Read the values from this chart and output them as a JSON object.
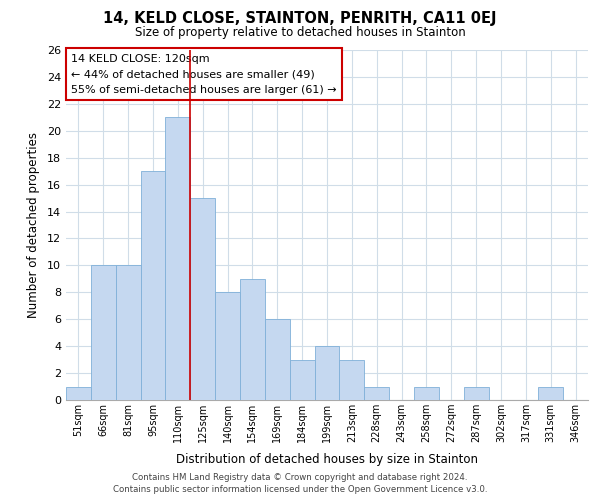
{
  "title": "14, KELD CLOSE, STAINTON, PENRITH, CA11 0EJ",
  "subtitle": "Size of property relative to detached houses in Stainton",
  "xlabel": "Distribution of detached houses by size in Stainton",
  "ylabel": "Number of detached properties",
  "bin_labels": [
    "51sqm",
    "66sqm",
    "81sqm",
    "95sqm",
    "110sqm",
    "125sqm",
    "140sqm",
    "154sqm",
    "169sqm",
    "184sqm",
    "199sqm",
    "213sqm",
    "228sqm",
    "243sqm",
    "258sqm",
    "272sqm",
    "287sqm",
    "302sqm",
    "317sqm",
    "331sqm",
    "346sqm"
  ],
  "bar_values": [
    1,
    10,
    10,
    17,
    21,
    15,
    8,
    9,
    6,
    3,
    4,
    3,
    1,
    0,
    1,
    0,
    1,
    0,
    0,
    1,
    0
  ],
  "bar_color": "#c5d8f0",
  "bar_edgecolor": "#7fb0d8",
  "vline_color": "#cc0000",
  "vline_x": 4.5,
  "ylim": [
    0,
    26
  ],
  "yticks": [
    0,
    2,
    4,
    6,
    8,
    10,
    12,
    14,
    16,
    18,
    20,
    22,
    24,
    26
  ],
  "annotation_title": "14 KELD CLOSE: 120sqm",
  "annotation_line1": "← 44% of detached houses are smaller (49)",
  "annotation_line2": "55% of semi-detached houses are larger (61) →",
  "footer_line1": "Contains HM Land Registry data © Crown copyright and database right 2024.",
  "footer_line2": "Contains public sector information licensed under the Open Government Licence v3.0.",
  "bg_color": "#ffffff",
  "grid_color": "#d0dde8"
}
